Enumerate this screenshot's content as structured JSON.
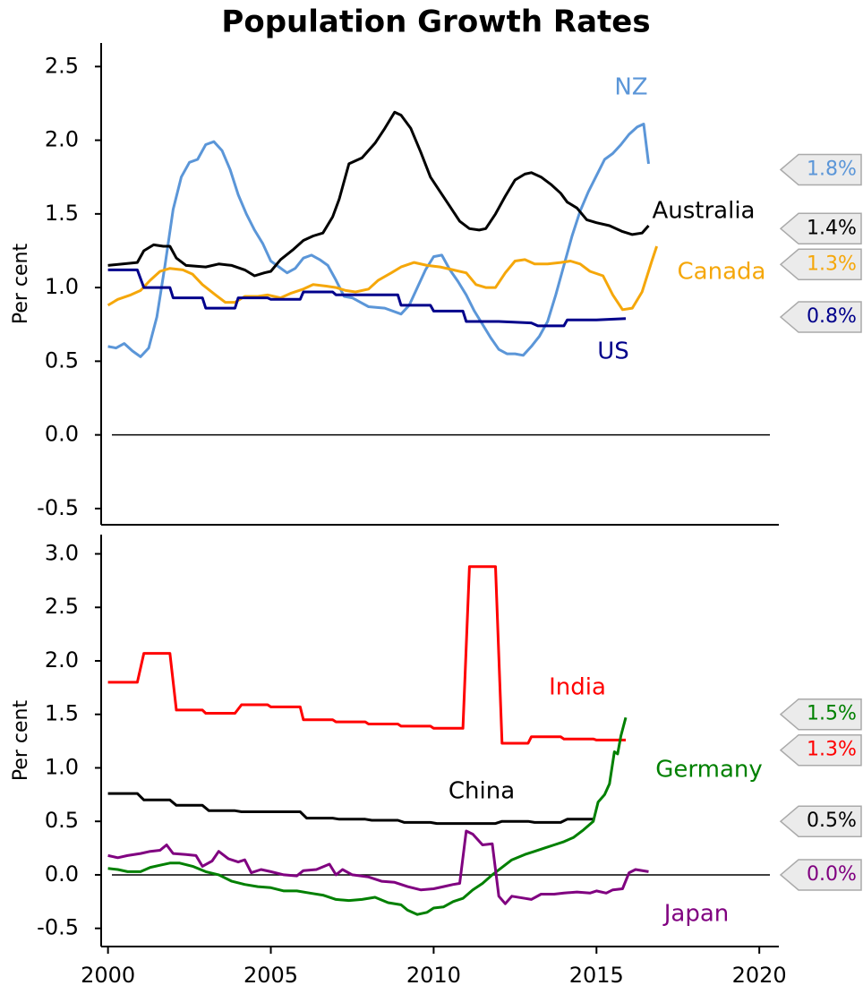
{
  "title": "Population Growth Rates",
  "chart_data": [
    {
      "type": "line",
      "ylabel": "Per cent",
      "xlim": [
        1999.9,
        2020.6
      ],
      "ylim": [
        -0.61,
        2.66
      ],
      "yticks": [
        -0.5,
        {
          "value": 0,
          "label": "0.0"
        },
        0.5,
        {
          "value": 1,
          "label": "1.0"
        },
        1.5,
        {
          "value": 2,
          "label": "2.0"
        },
        2.5
      ],
      "hline": 0,
      "series": [
        {
          "name": "NZ",
          "color": "#5b96d8",
          "tag": {
            "value": 1.8,
            "label": "1.8%"
          },
          "x": [
            2000,
            2000.25,
            2000.5,
            2000.75,
            2001,
            2001.25,
            2001.5,
            2001.75,
            2002,
            2002.25,
            2002.5,
            2002.75,
            2003,
            2003.25,
            2003.5,
            2003.75,
            2004,
            2004.25,
            2004.5,
            2004.75,
            2005,
            2005.25,
            2005.5,
            2005.75,
            2006,
            2006.25,
            2006.5,
            2006.75,
            2007,
            2007.25,
            2007.5,
            2007.75,
            2008,
            2008.5,
            2009,
            2009.25,
            2009.5,
            2009.75,
            2010,
            2010.25,
            2010.5,
            2010.75,
            2011,
            2011.25,
            2011.5,
            2011.75,
            2012,
            2012.25,
            2012.5,
            2012.75,
            2013,
            2013.25,
            2013.5,
            2013.75,
            2014,
            2014.25,
            2014.5,
            2014.75,
            2015,
            2015.25,
            2015.5,
            2015.75,
            2016,
            2016.25,
            2016.45,
            2016.6
          ],
          "values": [
            0.6,
            0.59,
            0.62,
            0.57,
            0.53,
            0.59,
            0.8,
            1.15,
            1.53,
            1.75,
            1.85,
            1.87,
            1.97,
            1.99,
            1.93,
            1.8,
            1.63,
            1.5,
            1.39,
            1.3,
            1.18,
            1.14,
            1.1,
            1.13,
            1.2,
            1.22,
            1.19,
            1.15,
            1.05,
            0.94,
            0.93,
            0.9,
            0.87,
            0.86,
            0.82,
            0.88,
            1.0,
            1.12,
            1.21,
            1.22,
            1.12,
            1.04,
            0.95,
            0.84,
            0.75,
            0.66,
            0.58,
            0.55,
            0.55,
            0.54,
            0.6,
            0.67,
            0.77,
            0.95,
            1.15,
            1.35,
            1.52,
            1.65,
            1.76,
            1.87,
            1.91,
            1.97,
            2.04,
            2.09,
            2.11,
            1.84
          ]
        },
        {
          "name": "Australia",
          "color": "#000000",
          "tag": {
            "value": 1.4,
            "label": "1.4%"
          },
          "x": [
            2000,
            2000.9,
            2001.1,
            2001.4,
            2001.7,
            2001.9,
            2002.1,
            2002.4,
            2003,
            2003.4,
            2003.8,
            2004.2,
            2004.5,
            2004.8,
            2005,
            2005.3,
            2005.7,
            2006,
            2006.3,
            2006.6,
            2006.9,
            2007.1,
            2007.4,
            2007.8,
            2008.2,
            2008.5,
            2008.8,
            2009,
            2009.3,
            2009.6,
            2009.9,
            2010.2,
            2010.5,
            2010.8,
            2011.1,
            2011.4,
            2011.6,
            2011.9,
            2012.2,
            2012.5,
            2012.8,
            2013,
            2013.3,
            2013.6,
            2013.9,
            2014.1,
            2014.4,
            2014.7,
            2015,
            2015.4,
            2015.8,
            2016.1,
            2016.4,
            2016.6
          ],
          "values": [
            1.15,
            1.17,
            1.25,
            1.29,
            1.28,
            1.28,
            1.2,
            1.15,
            1.14,
            1.16,
            1.15,
            1.12,
            1.08,
            1.1,
            1.11,
            1.19,
            1.26,
            1.32,
            1.35,
            1.37,
            1.48,
            1.6,
            1.84,
            1.88,
            1.98,
            2.08,
            2.19,
            2.17,
            2.08,
            1.92,
            1.75,
            1.65,
            1.55,
            1.45,
            1.4,
            1.39,
            1.4,
            1.5,
            1.62,
            1.73,
            1.77,
            1.78,
            1.75,
            1.7,
            1.64,
            1.58,
            1.54,
            1.46,
            1.44,
            1.42,
            1.38,
            1.36,
            1.37,
            1.42
          ]
        },
        {
          "name": "Canada",
          "color": "#f5a70a",
          "tag": {
            "value": 1.3,
            "label": "1.3%"
          },
          "x": [
            2000,
            2000.3,
            2000.7,
            2001,
            2001.3,
            2001.6,
            2001.9,
            2002.3,
            2002.6,
            2002.9,
            2003.3,
            2003.6,
            2003.9,
            2004.2,
            2004.6,
            2004.9,
            2005.3,
            2005.6,
            2006,
            2006.3,
            2006.7,
            2007,
            2007.3,
            2007.6,
            2008,
            2008.3,
            2008.7,
            2009,
            2009.4,
            2009.8,
            2010.2,
            2010.6,
            2011,
            2011.3,
            2011.6,
            2011.9,
            2012.2,
            2012.5,
            2012.8,
            2013.1,
            2013.5,
            2013.9,
            2014.2,
            2014.5,
            2014.8,
            2015.2,
            2015.5,
            2015.8,
            2016.1,
            2016.4,
            2016.7,
            2016.85
          ],
          "values": [
            0.88,
            0.92,
            0.95,
            0.98,
            1.05,
            1.11,
            1.13,
            1.12,
            1.09,
            1.02,
            0.95,
            0.9,
            0.9,
            0.94,
            0.94,
            0.95,
            0.93,
            0.96,
            0.99,
            1.02,
            1.01,
            1.0,
            0.98,
            0.97,
            0.99,
            1.05,
            1.1,
            1.14,
            1.17,
            1.15,
            1.14,
            1.12,
            1.1,
            1.02,
            1.0,
            1.0,
            1.1,
            1.18,
            1.19,
            1.16,
            1.16,
            1.17,
            1.18,
            1.16,
            1.11,
            1.08,
            0.95,
            0.85,
            0.86,
            0.97,
            1.18,
            1.28
          ]
        },
        {
          "name": "US",
          "color": "#00008b",
          "tag": {
            "value": 0.8,
            "label": "0.8%"
          },
          "x": [
            2000,
            2000.9,
            2001.1,
            2001.9,
            2002,
            2002.9,
            2003,
            2003.9,
            2004,
            2004.9,
            2005,
            2005.9,
            2006,
            2006.9,
            2007,
            2007.9,
            2008,
            2008.9,
            2009,
            2009.9,
            2010,
            2010.9,
            2011,
            2012,
            2013,
            2013.2,
            2014,
            2014.1,
            2015,
            2015.9
          ],
          "values": [
            1.12,
            1.12,
            1.0,
            1.0,
            0.93,
            0.93,
            0.86,
            0.86,
            0.93,
            0.93,
            0.92,
            0.92,
            0.97,
            0.97,
            0.95,
            0.95,
            0.95,
            0.95,
            0.88,
            0.88,
            0.84,
            0.84,
            0.77,
            0.77,
            0.76,
            0.74,
            0.74,
            0.78,
            0.78,
            0.79
          ]
        }
      ]
    },
    {
      "type": "line",
      "ylabel": "Per cent",
      "xlim": [
        1999.9,
        2020.6
      ],
      "ylim": [
        -0.67,
        3.18
      ],
      "xticks": [
        2000,
        2005,
        2010,
        2015,
        2020
      ],
      "yticks": [
        -0.5,
        {
          "value": 0,
          "label": "0.0"
        },
        0.5,
        {
          "value": 1,
          "label": "1.0"
        },
        1.5,
        {
          "value": 2,
          "label": "2.0"
        },
        2.5,
        {
          "value": 3,
          "label": "3.0"
        }
      ],
      "hline": 0,
      "series": [
        {
          "name": "India",
          "color": "#ff0000",
          "tag": {
            "value": 1.3,
            "label": "1.3%"
          },
          "x": [
            2000,
            2000.9,
            2001.1,
            2001.9,
            2002.1,
            2002.9,
            2003,
            2003.9,
            2004.1,
            2004.9,
            2005,
            2005.9,
            2006,
            2006.9,
            2007,
            2007.9,
            2008,
            2008.9,
            2009,
            2009.9,
            2010,
            2010.9,
            2011.1,
            2011.9,
            2012.1,
            2012.9,
            2013,
            2013.9,
            2014,
            2014.9,
            2015,
            2015.9
          ],
          "values": [
            1.8,
            1.8,
            2.07,
            2.07,
            1.54,
            1.54,
            1.51,
            1.51,
            1.59,
            1.59,
            1.57,
            1.57,
            1.45,
            1.45,
            1.43,
            1.43,
            1.41,
            1.41,
            1.39,
            1.39,
            1.37,
            1.37,
            2.88,
            2.88,
            1.23,
            1.23,
            1.29,
            1.29,
            1.27,
            1.27,
            1.26,
            1.26
          ]
        },
        {
          "name": "China",
          "color": "#000000",
          "tag": {
            "value": 0.5,
            "label": "0.5%"
          },
          "x": [
            2000,
            2000.9,
            2001.1,
            2001.9,
            2002.1,
            2002.9,
            2003.1,
            2003.9,
            2004.1,
            2005.9,
            2006.1,
            2006.9,
            2007.1,
            2007.9,
            2008.1,
            2008.9,
            2009.1,
            2009.9,
            2010.1,
            2011.9,
            2012.1,
            2012.9,
            2013.1,
            2013.9,
            2014.1,
            2014.9
          ],
          "values": [
            0.76,
            0.76,
            0.7,
            0.7,
            0.65,
            0.65,
            0.6,
            0.6,
            0.59,
            0.59,
            0.53,
            0.53,
            0.52,
            0.52,
            0.51,
            0.51,
            0.49,
            0.49,
            0.48,
            0.48,
            0.5,
            0.5,
            0.49,
            0.49,
            0.52,
            0.52
          ]
        },
        {
          "name": "Germany",
          "color": "#008000",
          "tag": {
            "value": 1.5,
            "label": "1.5%"
          },
          "x": [
            2000,
            2000.3,
            2000.6,
            2001,
            2001.3,
            2001.6,
            2001.9,
            2002.2,
            2002.6,
            2003,
            2003.4,
            2003.8,
            2004.2,
            2004.6,
            2005,
            2005.4,
            2005.8,
            2006.2,
            2006.6,
            2007,
            2007.4,
            2007.8,
            2008.2,
            2008.6,
            2009,
            2009.2,
            2009.5,
            2009.8,
            2010,
            2010.3,
            2010.6,
            2010.9,
            2011.2,
            2011.5,
            2011.8,
            2012.1,
            2012.4,
            2012.8,
            2013.1,
            2013.4,
            2013.7,
            2014,
            2014.3,
            2014.6,
            2014.9,
            2015.05,
            2015.25,
            2015.4,
            2015.55,
            2015.65,
            2015.75,
            2015.9
          ],
          "values": [
            0.06,
            0.05,
            0.03,
            0.03,
            0.07,
            0.09,
            0.11,
            0.11,
            0.08,
            0.03,
            0.0,
            -0.06,
            -0.09,
            -0.11,
            -0.12,
            -0.15,
            -0.15,
            -0.17,
            -0.19,
            -0.23,
            -0.24,
            -0.23,
            -0.21,
            -0.26,
            -0.28,
            -0.33,
            -0.37,
            -0.35,
            -0.31,
            -0.3,
            -0.25,
            -0.22,
            -0.14,
            -0.08,
            0.0,
            0.07,
            0.14,
            0.19,
            0.22,
            0.25,
            0.28,
            0.31,
            0.35,
            0.42,
            0.5,
            0.68,
            0.75,
            0.85,
            1.15,
            1.13,
            1.3,
            1.47
          ]
        },
        {
          "name": "Japan",
          "color": "#800080",
          "tag": {
            "value": 0.0,
            "label": "0.0%"
          },
          "x": [
            2000,
            2000.3,
            2000.6,
            2001,
            2001.3,
            2001.6,
            2001.8,
            2002,
            2002.4,
            2002.7,
            2002.9,
            2003.2,
            2003.4,
            2003.7,
            2004,
            2004.2,
            2004.4,
            2004.7,
            2005,
            2005.4,
            2005.8,
            2006,
            2006.4,
            2006.8,
            2007,
            2007.2,
            2007.5,
            2008,
            2008.4,
            2008.8,
            2009.2,
            2009.6,
            2010,
            2010.3,
            2010.6,
            2010.8,
            2011,
            2011.2,
            2011.5,
            2011.8,
            2012,
            2012.2,
            2012.4,
            2012.8,
            2013,
            2013.3,
            2013.7,
            2014,
            2014.4,
            2014.8,
            2015,
            2015.3,
            2015.5,
            2015.8,
            2016,
            2016.2,
            2016.6
          ],
          "values": [
            0.18,
            0.16,
            0.18,
            0.2,
            0.22,
            0.23,
            0.28,
            0.2,
            0.19,
            0.18,
            0.08,
            0.13,
            0.22,
            0.15,
            0.12,
            0.14,
            0.02,
            0.05,
            0.03,
            0.0,
            -0.01,
            0.04,
            0.05,
            0.1,
            0.0,
            0.05,
            0.0,
            -0.02,
            -0.06,
            -0.07,
            -0.11,
            -0.14,
            -0.13,
            -0.11,
            -0.09,
            -0.08,
            0.41,
            0.38,
            0.28,
            0.29,
            -0.2,
            -0.27,
            -0.2,
            -0.22,
            -0.23,
            -0.18,
            -0.18,
            -0.17,
            -0.16,
            -0.17,
            -0.15,
            -0.17,
            -0.14,
            -0.13,
            0.02,
            0.05,
            0.03
          ]
        }
      ]
    }
  ]
}
